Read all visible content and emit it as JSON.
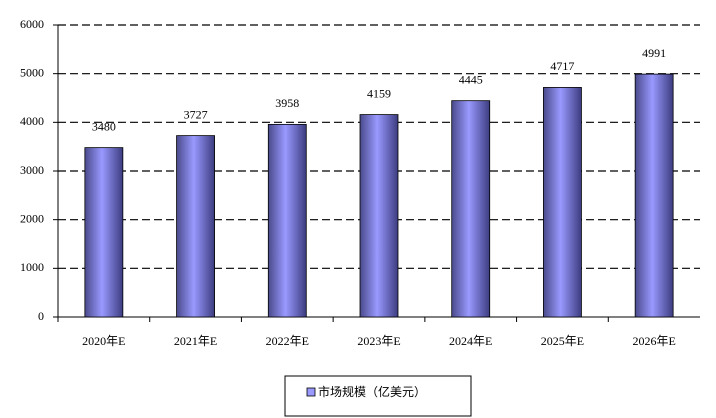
{
  "chart_data": {
    "type": "bar",
    "categories": [
      "2020年E",
      "2021年E",
      "2022年E",
      "2023年E",
      "2024年E",
      "2025年E",
      "2026年E"
    ],
    "series": [
      {
        "name": "市场规模（亿美元）",
        "color": "#9999ff",
        "values": [
          3480,
          3727,
          3958,
          4159,
          4445,
          4717,
          4991
        ]
      }
    ],
    "ylim": [
      0,
      6000
    ],
    "yticks": [
      0,
      1000,
      2000,
      3000,
      4000,
      5000,
      6000
    ],
    "grid": true,
    "legend": "bottom"
  }
}
